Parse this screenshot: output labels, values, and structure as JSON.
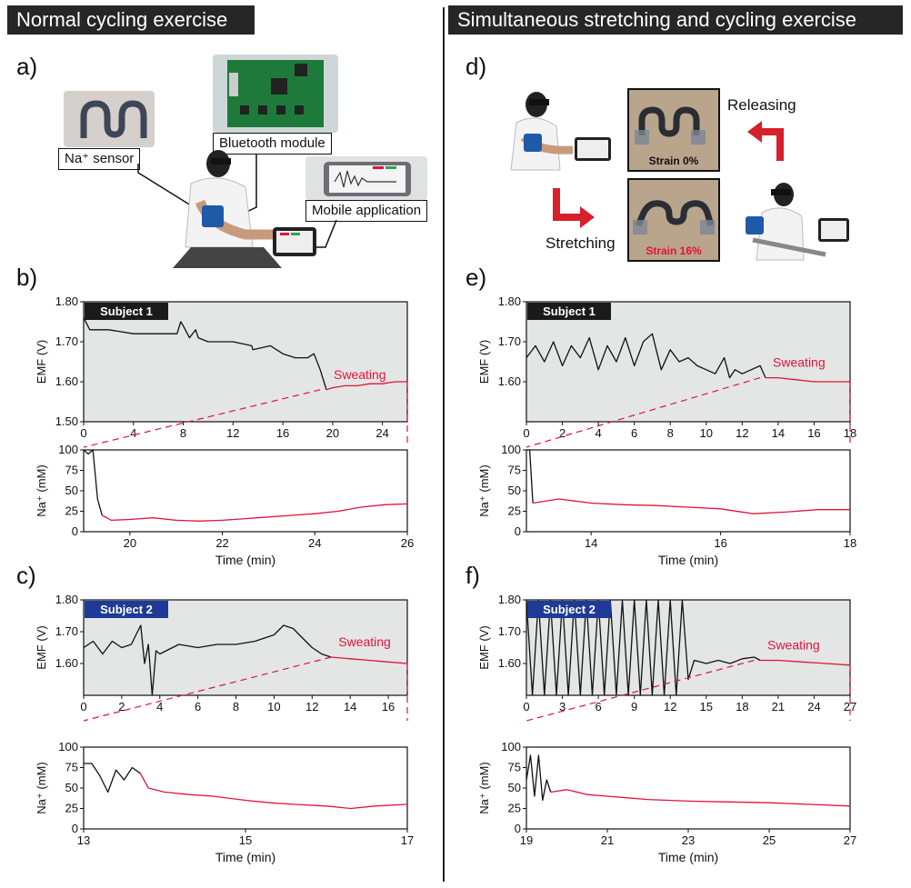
{
  "headers": {
    "left": "Normal cycling exercise",
    "right": "Simultaneous stretching and cycling exercise"
  },
  "panel_labels": {
    "a": "a)",
    "b": "b)",
    "c": "c)",
    "d": "d)",
    "e": "e)",
    "f": "f)"
  },
  "callouts": {
    "sensor": "Na⁺ sensor",
    "bluetooth": "Bluetooth module",
    "mobile": "Mobile application"
  },
  "panel_d": {
    "releasing": "Releasing",
    "stretching": "Stretching",
    "strain0": "Strain 0%",
    "strain16": "Strain 16%"
  },
  "colors": {
    "header_bg": "#262626",
    "plot_bg": "#e3e6e4",
    "signal": "#111111",
    "sweat": "#e0143c",
    "subject1_badge": "#1a1a1a",
    "subject2_badge": "#1f3a96",
    "arrow": "#d6202b"
  },
  "chart_data": [
    {
      "id": "b-top",
      "panel": "b",
      "type": "line",
      "badge": "Subject 1",
      "ylabel": "EMF (V)",
      "xlabel": "",
      "annotation": "Sweating",
      "xlim": [
        0,
        26
      ],
      "ylim": [
        1.5,
        1.8
      ],
      "xticks": [
        0,
        4,
        8,
        12,
        16,
        20,
        24
      ],
      "yticks": [
        1.5,
        1.6,
        1.7,
        1.8
      ],
      "ytick_labels": [
        "1.50",
        "1.60",
        "1.70",
        "1.80"
      ],
      "zoom_range": [
        19,
        26
      ],
      "series": [
        {
          "name": "pre-sweat",
          "color": "#111111",
          "x": [
            0,
            0.5,
            2,
            4,
            6,
            7.5,
            7.8,
            8,
            8.5,
            9,
            9.2,
            10,
            12,
            13.5,
            13.6,
            15,
            16,
            17,
            18,
            18.5,
            19,
            19.3,
            19.5
          ],
          "y": [
            1.76,
            1.73,
            1.73,
            1.72,
            1.72,
            1.72,
            1.75,
            1.74,
            1.71,
            1.73,
            1.71,
            1.7,
            1.7,
            1.69,
            1.68,
            1.69,
            1.67,
            1.66,
            1.66,
            1.67,
            1.63,
            1.6,
            1.58
          ]
        },
        {
          "name": "sweating",
          "color": "#e0143c",
          "x": [
            19.5,
            20,
            21,
            22,
            23,
            24,
            25,
            26
          ],
          "y": [
            1.58,
            1.585,
            1.59,
            1.59,
            1.595,
            1.595,
            1.6,
            1.6
          ]
        }
      ]
    },
    {
      "id": "b-bottom",
      "panel": "b",
      "type": "line",
      "ylabel": "Na⁺ (mM)",
      "xlabel": "Time (min)",
      "xlim": [
        19,
        26
      ],
      "ylim": [
        0,
        100
      ],
      "xticks": [
        20,
        22,
        24,
        26
      ],
      "yticks": [
        0,
        25,
        50,
        75,
        100
      ],
      "series": [
        {
          "name": "pre-sweat",
          "color": "#111111",
          "x": [
            19,
            19.1,
            19.2,
            19.3,
            19.4
          ],
          "y": [
            100,
            95,
            100,
            40,
            20
          ]
        },
        {
          "name": "sweating",
          "color": "#e0143c",
          "x": [
            19.4,
            19.6,
            20,
            20.5,
            21,
            21.5,
            22,
            22.5,
            23,
            23.5,
            24,
            24.5,
            25,
            25.5,
            26
          ],
          "y": [
            20,
            14,
            15,
            17,
            14,
            13,
            14,
            16,
            18,
            20,
            22,
            25,
            30,
            33,
            34
          ]
        }
      ]
    },
    {
      "id": "c-top",
      "panel": "c",
      "type": "line",
      "badge": "Subject 2",
      "ylabel": "EMF (V)",
      "xlabel": "",
      "annotation": "Sweating",
      "xlim": [
        0,
        17
      ],
      "ylim": [
        1.5,
        1.8
      ],
      "xticks": [
        0,
        2,
        4,
        6,
        8,
        10,
        12,
        14,
        16
      ],
      "yticks": [
        1.6,
        1.7,
        1.8
      ],
      "ytick_labels": [
        "1.60",
        "1.70",
        "1.80"
      ],
      "zoom_range": [
        13,
        17
      ],
      "series": [
        {
          "name": "pre-sweat",
          "color": "#111111",
          "x": [
            0,
            0.5,
            1,
            1.5,
            2,
            2.5,
            3,
            3.2,
            3.4,
            3.6,
            3.8,
            4,
            5,
            6,
            7,
            8,
            9,
            10,
            10.5,
            11,
            11.5,
            12,
            12.5,
            13
          ],
          "y": [
            1.65,
            1.67,
            1.63,
            1.67,
            1.65,
            1.66,
            1.72,
            1.6,
            1.66,
            1.5,
            1.64,
            1.63,
            1.66,
            1.65,
            1.66,
            1.66,
            1.67,
            1.69,
            1.72,
            1.71,
            1.68,
            1.65,
            1.63,
            1.62
          ]
        },
        {
          "name": "sweating",
          "color": "#e0143c",
          "x": [
            13,
            14,
            15,
            16,
            17
          ],
          "y": [
            1.62,
            1.615,
            1.61,
            1.605,
            1.6
          ]
        }
      ]
    },
    {
      "id": "c-bottom",
      "panel": "c",
      "type": "line",
      "ylabel": "Na⁺ (mM)",
      "xlabel": "Time (min)",
      "xlim": [
        13,
        17
      ],
      "ylim": [
        0,
        100
      ],
      "xticks": [
        13,
        15,
        17
      ],
      "yticks": [
        0,
        25,
        50,
        75,
        100
      ],
      "series": [
        {
          "name": "pre-sweat",
          "color": "#111111",
          "x": [
            13,
            13.1,
            13.2,
            13.3,
            13.4,
            13.5,
            13.6,
            13.7
          ],
          "y": [
            80,
            80,
            65,
            45,
            72,
            60,
            75,
            68
          ]
        },
        {
          "name": "sweating",
          "color": "#e0143c",
          "x": [
            13.7,
            13.8,
            14,
            14.3,
            14.6,
            15,
            15.3,
            15.6,
            16,
            16.3,
            16.6,
            17
          ],
          "y": [
            68,
            50,
            45,
            42,
            40,
            35,
            32,
            30,
            28,
            25,
            28,
            30
          ]
        }
      ]
    },
    {
      "id": "e-top",
      "panel": "e",
      "type": "line",
      "badge": "Subject 1",
      "ylabel": "EMF (V)",
      "xlabel": "",
      "annotation": "Sweating",
      "xlim": [
        0,
        18
      ],
      "ylim": [
        1.5,
        1.8
      ],
      "xticks": [
        0,
        2,
        4,
        6,
        8,
        10,
        12,
        14,
        16,
        18
      ],
      "yticks": [
        1.6,
        1.7,
        1.8
      ],
      "ytick_labels": [
        "1.60",
        "1.70",
        "1.80"
      ],
      "zoom_range": [
        13,
        18
      ],
      "series": [
        {
          "name": "pre-sweat",
          "color": "#111111",
          "x": [
            0,
            0.5,
            1,
            1.5,
            2,
            2.5,
            3,
            3.5,
            4,
            4.5,
            5,
            5.5,
            6,
            6.5,
            7,
            7.5,
            8,
            8.5,
            9,
            9.5,
            10,
            10.5,
            11,
            11.3,
            11.6,
            12,
            12.5,
            13,
            13.3
          ],
          "y": [
            1.66,
            1.69,
            1.65,
            1.7,
            1.64,
            1.69,
            1.66,
            1.71,
            1.63,
            1.69,
            1.65,
            1.71,
            1.64,
            1.7,
            1.72,
            1.63,
            1.68,
            1.65,
            1.66,
            1.64,
            1.63,
            1.62,
            1.66,
            1.61,
            1.63,
            1.62,
            1.63,
            1.64,
            1.61
          ]
        },
        {
          "name": "sweating",
          "color": "#e0143c",
          "x": [
            13.3,
            14,
            15,
            16,
            17,
            18
          ],
          "y": [
            1.61,
            1.61,
            1.605,
            1.6,
            1.6,
            1.6
          ]
        }
      ]
    },
    {
      "id": "e-bottom",
      "panel": "e",
      "type": "line",
      "ylabel": "Na⁺ (mM)",
      "xlabel": "Time (min)",
      "xlim": [
        13,
        18
      ],
      "ylim": [
        0,
        100
      ],
      "xticks": [
        14,
        16,
        18
      ],
      "yticks": [
        0,
        25,
        50,
        75,
        100
      ],
      "series": [
        {
          "name": "pre-sweat",
          "color": "#111111",
          "x": [
            13,
            13.05,
            13.1
          ],
          "y": [
            100,
            100,
            35
          ]
        },
        {
          "name": "sweating",
          "color": "#e0143c",
          "x": [
            13.1,
            13.5,
            14,
            14.5,
            15,
            15.5,
            16,
            16.5,
            17,
            17.5,
            18
          ],
          "y": [
            35,
            40,
            35,
            33,
            32,
            30,
            28,
            22,
            24,
            27,
            27
          ]
        }
      ]
    },
    {
      "id": "f-top",
      "panel": "f",
      "type": "line",
      "badge": "Subject 2",
      "ylabel": "EMF (V)",
      "xlabel": "",
      "annotation": "Sweating",
      "xlim": [
        0,
        27
      ],
      "ylim": [
        1.5,
        1.8
      ],
      "xticks": [
        0,
        3,
        6,
        9,
        12,
        15,
        18,
        21,
        24,
        27
      ],
      "yticks": [
        1.6,
        1.7,
        1.8
      ],
      "ytick_labels": [
        "1.60",
        "1.70",
        "1.80"
      ],
      "zoom_range": [
        19,
        27
      ],
      "series": [
        {
          "name": "pre-sweat",
          "color": "#111111",
          "x": [
            0,
            0.5,
            1,
            1.5,
            2,
            2.5,
            3,
            3.5,
            4,
            4.5,
            5,
            5.5,
            6,
            6.5,
            7,
            7.5,
            8,
            8.5,
            9,
            9.5,
            10,
            10.5,
            11,
            11.5,
            12,
            12.5,
            13,
            13.5,
            14,
            15,
            16,
            17,
            18,
            19,
            19.5
          ],
          "y": [
            1.8,
            1.5,
            1.8,
            1.5,
            1.8,
            1.5,
            1.8,
            1.5,
            1.8,
            1.5,
            1.8,
            1.5,
            1.8,
            1.5,
            1.8,
            1.5,
            1.8,
            1.5,
            1.8,
            1.5,
            1.8,
            1.5,
            1.8,
            1.5,
            1.8,
            1.5,
            1.8,
            1.55,
            1.61,
            1.6,
            1.61,
            1.6,
            1.615,
            1.62,
            1.61
          ]
        },
        {
          "name": "sweating",
          "color": "#e0143c",
          "x": [
            19.5,
            21,
            23,
            25,
            27
          ],
          "y": [
            1.61,
            1.61,
            1.605,
            1.6,
            1.595
          ]
        }
      ]
    },
    {
      "id": "f-bottom",
      "panel": "f",
      "type": "line",
      "ylabel": "Na⁺ (mM)",
      "xlabel": "Time (min)",
      "xlim": [
        19,
        27
      ],
      "ylim": [
        0,
        100
      ],
      "xticks": [
        19,
        21,
        23,
        25,
        27
      ],
      "yticks": [
        0,
        25,
        50,
        75,
        100
      ],
      "series": [
        {
          "name": "pre-sweat",
          "color": "#111111",
          "x": [
            19,
            19.1,
            19.2,
            19.3,
            19.4,
            19.5,
            19.6
          ],
          "y": [
            60,
            90,
            40,
            90,
            35,
            60,
            45
          ]
        },
        {
          "name": "sweating",
          "color": "#e0143c",
          "x": [
            19.6,
            20,
            20.5,
            21,
            21.5,
            22,
            23,
            24,
            25,
            26,
            27
          ],
          "y": [
            45,
            48,
            42,
            40,
            38,
            36,
            34,
            33,
            32,
            30,
            28
          ]
        }
      ]
    }
  ]
}
